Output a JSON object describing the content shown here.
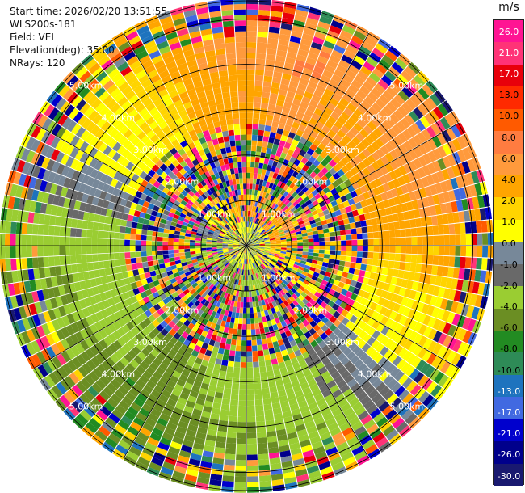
{
  "header": {
    "start_time": "Start time: 2026/02/20 13:51:55",
    "instrument": "WLS200s-181",
    "field": "Field: VEL",
    "elevation": "Elevation(deg): 35.00",
    "nrays": "NRays: 120"
  },
  "colorbar": {
    "unit": "m/s",
    "ticks": [
      "26.0",
      "21.0",
      "17.0",
      "13.0",
      "10.0",
      "8.0",
      "6.0",
      "4.0",
      "2.0",
      "1.0",
      "0.0",
      "-1.0",
      "-2.0",
      "-4.0",
      "-6.0",
      "-8.0",
      "-10.0",
      "-13.0",
      "-17.0",
      "-21.0",
      "-26.0",
      "-30.0"
    ],
    "colors": [
      "#ff1493",
      "#ff3377",
      "#e8000b",
      "#ff2a00",
      "#ff5a00",
      "#ff7c40",
      "#ff9a3c",
      "#ffa500",
      "#ffd400",
      "#ffff00",
      "#778899",
      "#696969",
      "#9acd32",
      "#6b8e23",
      "#228b22",
      "#2e8b57",
      "#1e73be",
      "#4169e1",
      "#0000cd",
      "#00008b",
      "#191970"
    ]
  },
  "chart_data": {
    "type": "ppi",
    "field": "VEL",
    "units": "m/s",
    "nrays": 120,
    "elevation_deg": 35.0,
    "range_rings_km": [
      1.0,
      2.0,
      3.0,
      4.0,
      5.0
    ],
    "ring_labels": [
      "1.00km",
      "2.00km",
      "3.00km",
      "4.00km",
      "5.00km"
    ],
    "max_range_km": 5.4,
    "spoke_angles_deg": [
      0,
      30,
      60,
      90,
      120,
      150,
      180,
      210,
      240,
      270,
      300,
      330
    ],
    "color_levels": [
      -30,
      -26,
      -21,
      -17,
      -13,
      -10,
      -8,
      -6,
      -4,
      -2,
      -1,
      0,
      1,
      2,
      4,
      6,
      8,
      10,
      13,
      17,
      21,
      26
    ],
    "range_bands_km": [
      {
        "from": 0.0,
        "to": 0.5,
        "pattern": "noise"
      },
      {
        "from": 0.5,
        "to": 1.1,
        "pattern": "mixed"
      },
      {
        "from": 1.1,
        "to": 2.7,
        "pattern": "noise"
      },
      {
        "from": 2.7,
        "to": 3.3,
        "pattern": "clean"
      },
      {
        "from": 3.3,
        "to": 4.6,
        "pattern": "clean"
      },
      {
        "from": 4.6,
        "to": 5.4,
        "pattern": "noise"
      }
    ]
  }
}
